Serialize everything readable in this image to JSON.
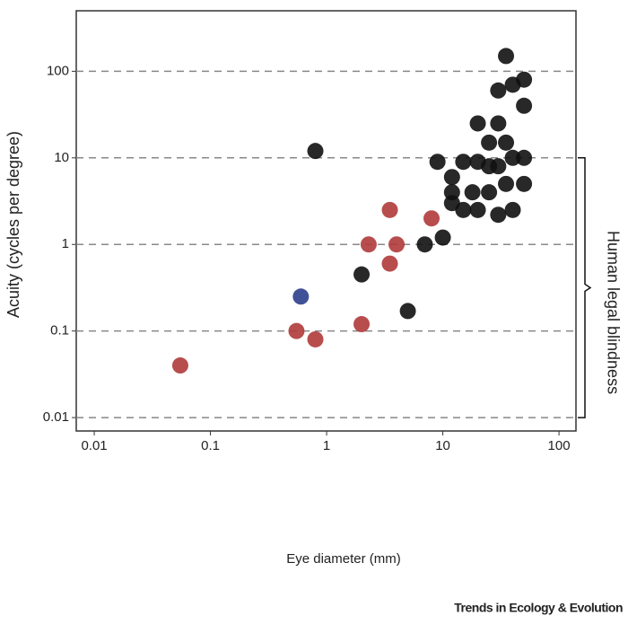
{
  "chart_data": {
    "type": "scatter",
    "x_label": "Eye diameter (mm)",
    "y_label": "Acuity (cycles per degree)",
    "log_x": true,
    "log_y": true,
    "xlim": [
      0.007,
      140
    ],
    "ylim": [
      0.007,
      500
    ],
    "xticks": [
      0.01,
      0.1,
      1,
      10,
      100
    ],
    "yticks": [
      0.01,
      0.1,
      1,
      10,
      100
    ],
    "grid": true,
    "annotation": {
      "text": "Human legal blindness",
      "range": [
        0.01,
        10
      ]
    },
    "source": "Trends in Ecology & Evolution",
    "series": [
      {
        "color": "#b03a3a",
        "x": [
          0.055,
          0.55,
          0.8,
          2,
          2.3,
          3.5,
          4,
          3.5,
          8
        ],
        "y": [
          0.04,
          0.1,
          0.08,
          0.12,
          1,
          0.6,
          1,
          2.5,
          2
        ]
      },
      {
        "color": "#2c3e8c",
        "x": [
          0.6
        ],
        "y": [
          0.25
        ]
      },
      {
        "color": "#111111",
        "x": [
          0.8,
          2,
          5,
          7,
          10,
          9,
          12,
          15,
          20,
          25,
          30,
          40,
          50,
          12,
          18,
          25,
          35,
          50,
          12,
          15,
          20,
          30,
          40,
          20,
          25,
          30,
          35,
          50,
          30,
          40,
          50,
          35
        ],
        "y": [
          12,
          0.45,
          0.17,
          1,
          1.2,
          9,
          6,
          9,
          9,
          8,
          8,
          10,
          10,
          4,
          4,
          4,
          5,
          5,
          3,
          2.5,
          2.5,
          2.2,
          2.5,
          25,
          15,
          25,
          15,
          40,
          60,
          70,
          80,
          150
        ]
      }
    ]
  }
}
